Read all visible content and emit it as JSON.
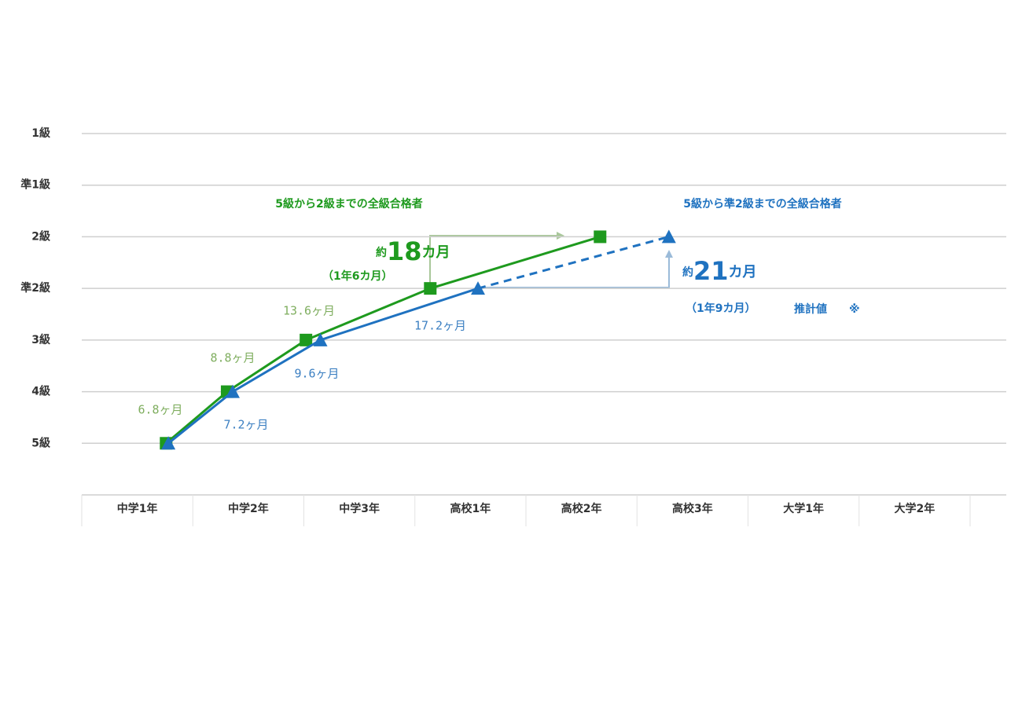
{
  "chart_data": {
    "type": "line",
    "categories": [
      "中学1年",
      "中学2年",
      "中学3年",
      "高校1年",
      "高校2年",
      "高校3年",
      "大学1年",
      "大学2年"
    ],
    "xlim": [
      0,
      8.33
    ],
    "ylim": [
      -1,
      6
    ],
    "yticks": [
      {
        "value": 0,
        "label": "5級"
      },
      {
        "value": 1,
        "label": "4級"
      },
      {
        "value": 2,
        "label": "3級"
      },
      {
        "value": 3,
        "label": "準2級"
      },
      {
        "value": 4,
        "label": "2級"
      },
      {
        "value": 5,
        "label": "準1級"
      },
      {
        "value": 6,
        "label": "1級"
      }
    ],
    "grid": true,
    "series": [
      {
        "name": "5級から2級までの全級合格者",
        "color": "#1e9a1e",
        "marker": "square",
        "x": [
          0.76,
          1.31,
          2.02,
          3.14,
          4.67
        ],
        "values": [
          0,
          1,
          2,
          3,
          4
        ],
        "segment_labels": [
          "6.8ヶ月",
          "8.8ヶ月",
          "13.6ヶ月"
        ],
        "label_color": "#7fae5f"
      },
      {
        "name": "5級から準2級までの全級合格者",
        "color": "#1f72c0",
        "marker": "triangle",
        "dashed_last": true,
        "x": [
          0.78,
          1.36,
          2.15,
          3.57,
          5.29
        ],
        "values": [
          0,
          1,
          2,
          3,
          4
        ],
        "segment_labels": [
          "7.2ヶ月",
          "9.6ヶ月",
          "17.2ヶ月"
        ],
        "label_color": "#3d80c2"
      }
    ],
    "annotations": {
      "green": {
        "prefix": "約",
        "number": "18",
        "unit": "カ月",
        "detail": "（1年6カ月）"
      },
      "blue": {
        "prefix": "約",
        "number": "21",
        "unit": "カ月",
        "detail": "（1年9カ月）",
        "note": "推計値",
        "mark": "※"
      }
    }
  }
}
